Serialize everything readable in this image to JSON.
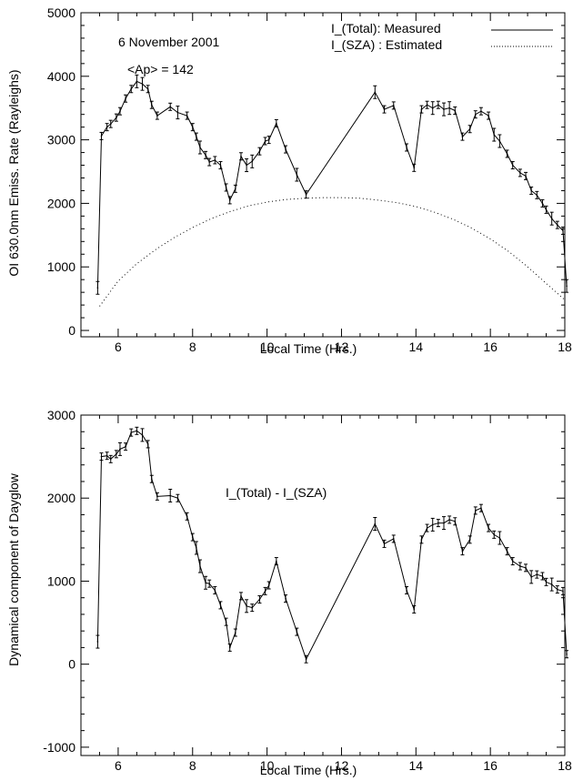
{
  "chart_data": [
    {
      "type": "line",
      "title": "",
      "xlabel": "Local Time (Hrs.)",
      "ylabel": "OI 630.0nm Emiss. Rate (Rayleighs)",
      "xlim": [
        5,
        18
      ],
      "ylim": [
        -100,
        5000
      ],
      "x_ticks": [
        6,
        8,
        10,
        12,
        14,
        16,
        18
      ],
      "y_ticks": [
        0,
        1000,
        2000,
        3000,
        4000,
        5000
      ],
      "grid": false,
      "legend_position": "top-right",
      "annotations": [
        "6 November 2001",
        "<Ap> = 142"
      ],
      "series": [
        {
          "name": "I_(Total): Measured",
          "style": "solid",
          "x": [
            5.45,
            5.55,
            5.7,
            5.8,
            5.95,
            6.05,
            6.2,
            6.35,
            6.5,
            6.65,
            6.8,
            6.9,
            7.05,
            7.4,
            7.6,
            7.85,
            8.0,
            8.1,
            8.2,
            8.35,
            8.45,
            8.6,
            8.75,
            8.9,
            9.0,
            9.15,
            9.3,
            9.45,
            9.6,
            9.8,
            9.95,
            10.05,
            10.25,
            10.5,
            10.8,
            11.05,
            12.9,
            13.15,
            13.4,
            13.75,
            13.95,
            14.15,
            14.3,
            14.45,
            14.6,
            14.75,
            14.9,
            15.05,
            15.25,
            15.45,
            15.6,
            15.75,
            15.95,
            16.1,
            16.25,
            16.45,
            16.6,
            16.8,
            16.95,
            17.1,
            17.25,
            17.4,
            17.5,
            17.65,
            17.8,
            17.95,
            18.05
          ],
          "y": [
            670,
            3060,
            3200,
            3250,
            3350,
            3450,
            3650,
            3800,
            3920,
            3880,
            3800,
            3550,
            3380,
            3520,
            3430,
            3380,
            3200,
            3050,
            2880,
            2760,
            2650,
            2680,
            2600,
            2250,
            2050,
            2230,
            2740,
            2600,
            2660,
            2820,
            2980,
            3000,
            3260,
            2850,
            2450,
            2140,
            3750,
            3480,
            3540,
            2880,
            2560,
            3480,
            3550,
            3500,
            3550,
            3480,
            3500,
            3460,
            3050,
            3170,
            3400,
            3450,
            3380,
            3080,
            2980,
            2780,
            2600,
            2480,
            2430,
            2200,
            2130,
            2000,
            1900,
            1760,
            1660,
            1570,
            700
          ]
        },
        {
          "name": "I_(SZA) : Estimated",
          "style": "dotted",
          "x": [
            5.5,
            6,
            6.5,
            7,
            7.5,
            8,
            8.5,
            9,
            9.5,
            10,
            10.5,
            11,
            11.5,
            12,
            12.5,
            13,
            13.5,
            14,
            14.5,
            15,
            15.5,
            16,
            16.5,
            17,
            17.5,
            18
          ],
          "y": [
            380,
            780,
            1050,
            1270,
            1460,
            1620,
            1760,
            1870,
            1960,
            2020,
            2060,
            2080,
            2090,
            2090,
            2080,
            2050,
            2010,
            1950,
            1860,
            1750,
            1610,
            1440,
            1240,
            1000,
            740,
            480
          ]
        }
      ]
    },
    {
      "type": "line",
      "title": "",
      "xlabel": "Local Time (Hrs.)",
      "ylabel": "Dynamical component of Dayglow",
      "xlim": [
        5,
        18
      ],
      "ylim": [
        -1100,
        3000
      ],
      "x_ticks": [
        6,
        8,
        10,
        12,
        14,
        16,
        18
      ],
      "y_ticks": [
        -1000,
        0,
        1000,
        2000,
        3000
      ],
      "grid": false,
      "annotations": [
        "I_(Total) - I_(SZA)"
      ],
      "series": [
        {
          "name": "",
          "style": "solid",
          "x": [
            5.45,
            5.55,
            5.7,
            5.8,
            5.95,
            6.05,
            6.2,
            6.35,
            6.5,
            6.65,
            6.8,
            6.9,
            7.05,
            7.4,
            7.6,
            7.85,
            8.0,
            8.1,
            8.2,
            8.35,
            8.45,
            8.6,
            8.75,
            8.9,
            9.0,
            9.15,
            9.3,
            9.45,
            9.6,
            9.8,
            9.95,
            10.05,
            10.25,
            10.5,
            10.8,
            11.05,
            12.9,
            13.15,
            13.4,
            13.75,
            13.95,
            14.15,
            14.3,
            14.45,
            14.6,
            14.75,
            14.9,
            15.05,
            15.25,
            15.45,
            15.6,
            15.75,
            15.95,
            16.1,
            16.25,
            16.45,
            16.6,
            16.8,
            16.95,
            17.1,
            17.25,
            17.4,
            17.5,
            17.65,
            17.8,
            17.95,
            18.05
          ],
          "y": [
            270,
            2500,
            2510,
            2470,
            2530,
            2590,
            2620,
            2790,
            2810,
            2760,
            2650,
            2230,
            2020,
            2030,
            2000,
            1780,
            1530,
            1400,
            1180,
            980,
            970,
            890,
            710,
            510,
            200,
            380,
            820,
            700,
            680,
            780,
            880,
            950,
            1240,
            790,
            390,
            60,
            1690,
            1450,
            1510,
            890,
            660,
            1500,
            1640,
            1680,
            1700,
            1700,
            1740,
            1720,
            1360,
            1500,
            1850,
            1880,
            1640,
            1560,
            1520,
            1360,
            1240,
            1180,
            1160,
            1050,
            1080,
            1060,
            990,
            960,
            900,
            880,
            120
          ]
        }
      ]
    }
  ]
}
